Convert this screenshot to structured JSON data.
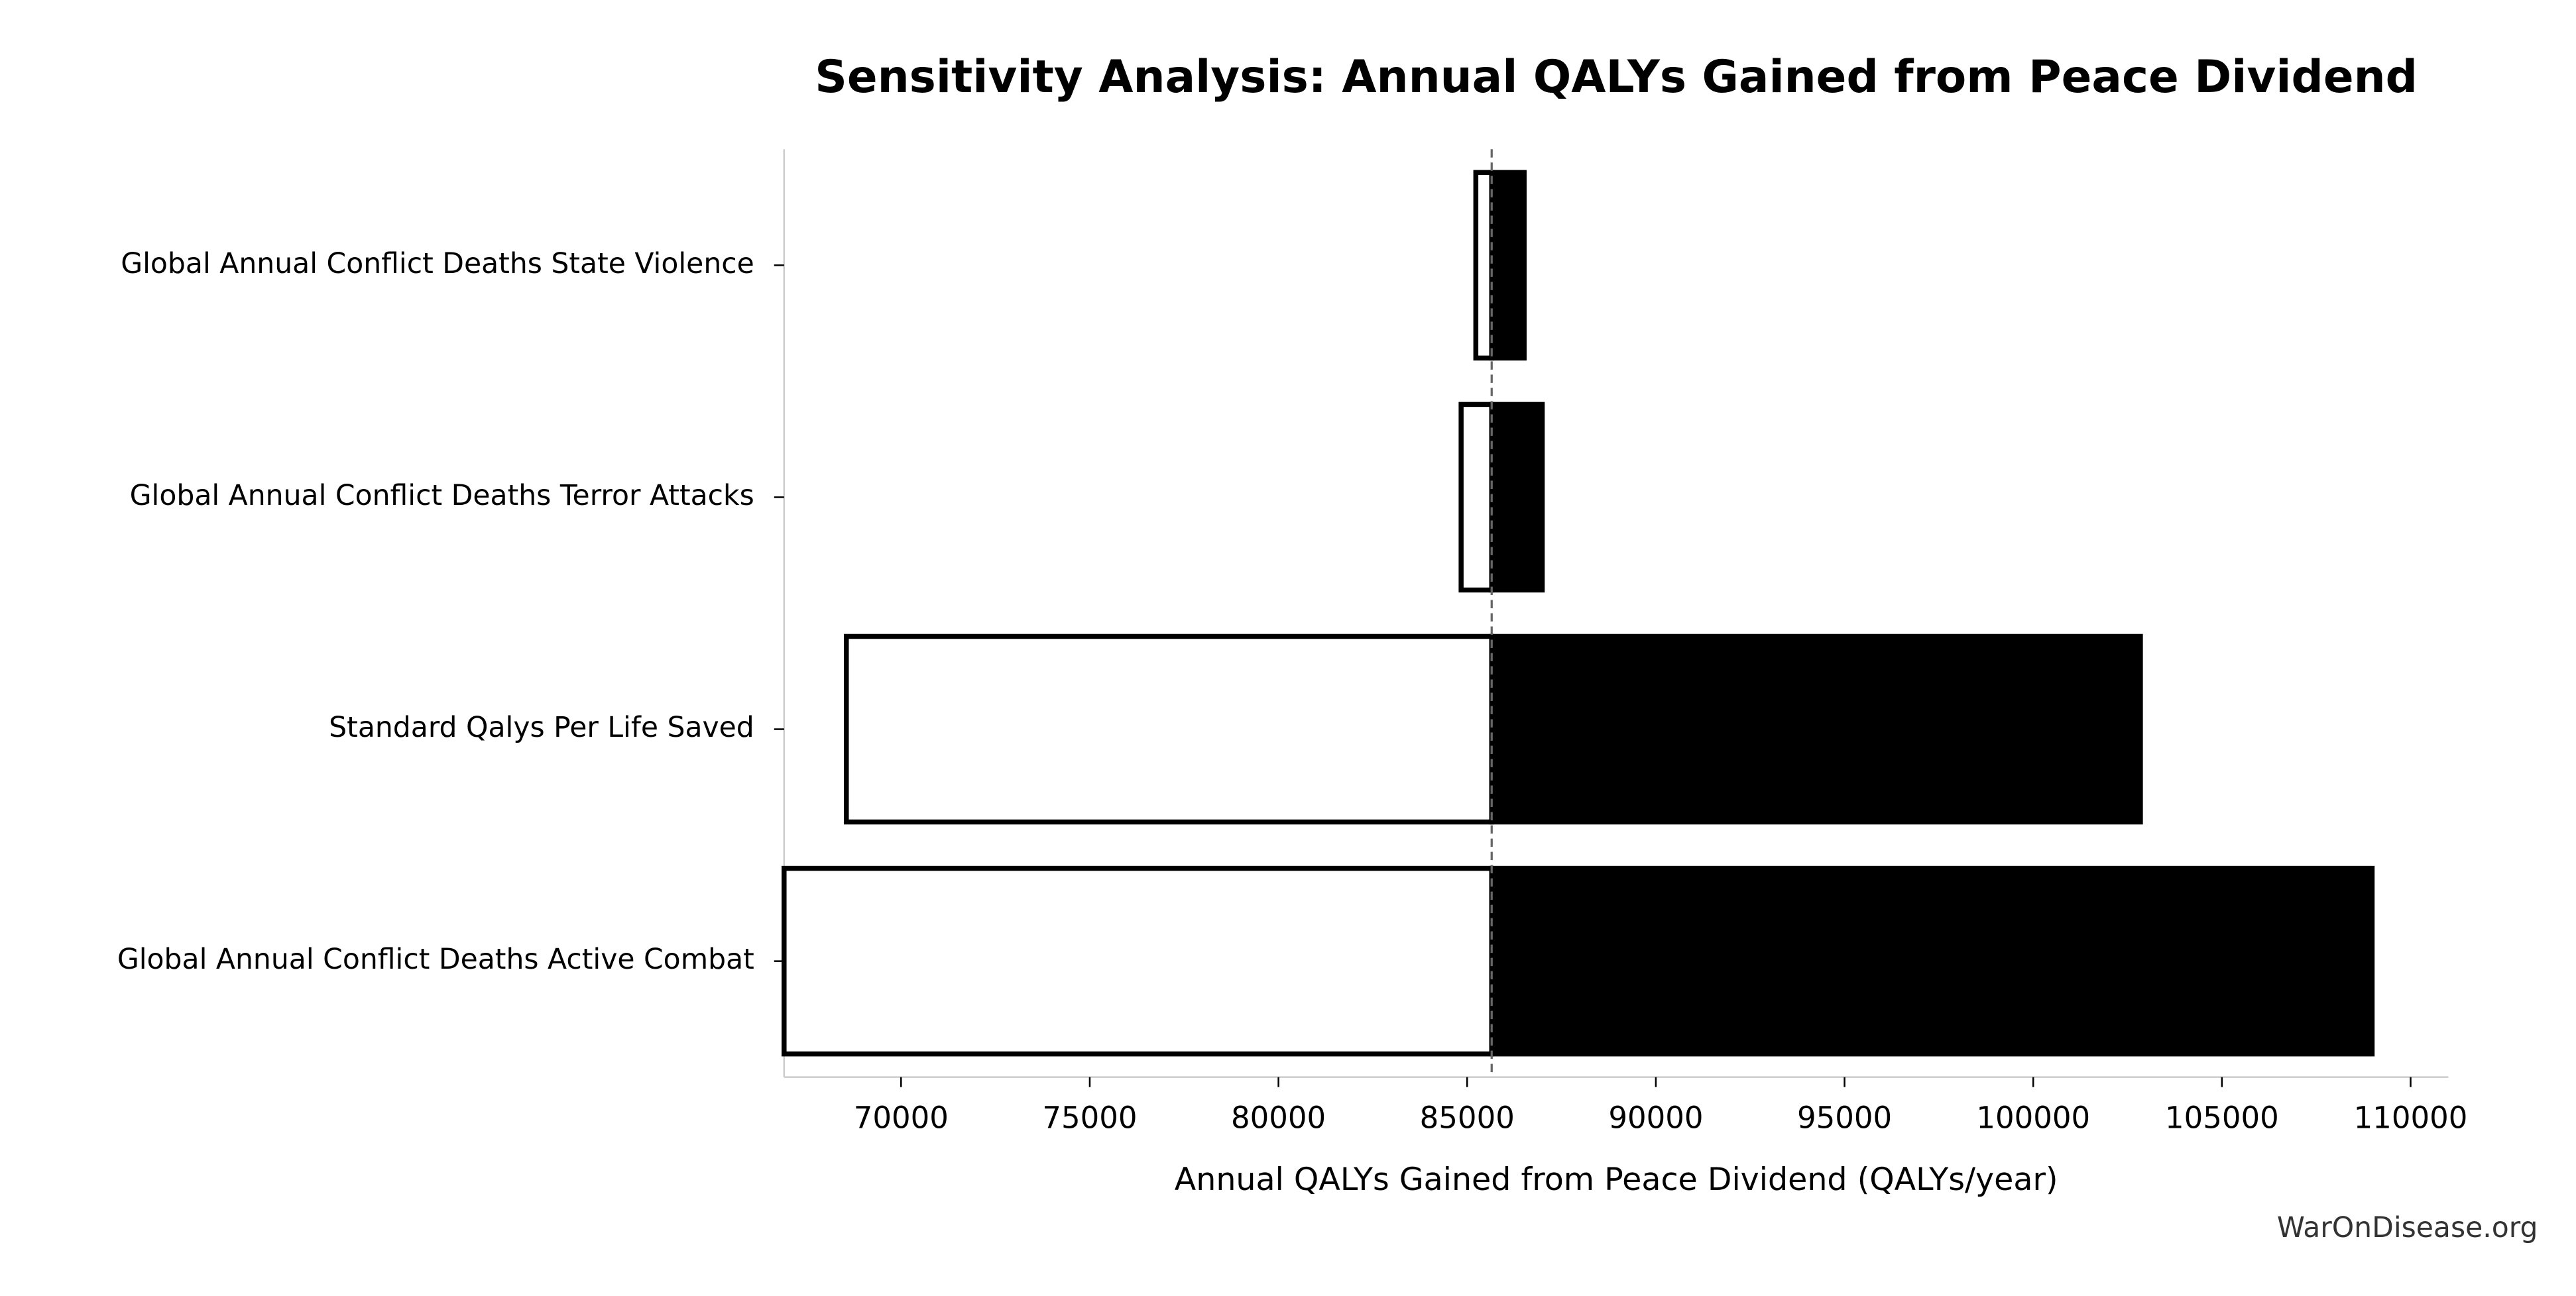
{
  "chart_data": {
    "type": "tornado",
    "title": "Sensitivity Analysis: Annual QALYs Gained from Peace Dividend",
    "x_label": "Annual QALYs Gained from Peace Dividend (QALYs/year)",
    "source": "WarOnDisease.org",
    "categories": [
      "Global Annual Conflict Deaths State Violence",
      "Global Annual Conflict Deaths Terror Attacks",
      "Standard Qalys Per Life Saved",
      "Global Annual Conflict Deaths Active Combat"
    ],
    "baseline": 85650,
    "series": [
      {
        "color": "#ffffff",
        "edgecolor": "#000000",
        "values": [
          85230,
          84840,
          68550,
          66900
        ]
      },
      {
        "color": "#000000",
        "edgecolor": "#000000",
        "values": [
          86510,
          86990,
          102840,
          108980
        ]
      }
    ],
    "xlim": [
      66900,
      111000
    ],
    "xticks": [
      70000,
      75000,
      80000,
      85000,
      90000,
      95000,
      100000,
      105000,
      110000
    ]
  }
}
